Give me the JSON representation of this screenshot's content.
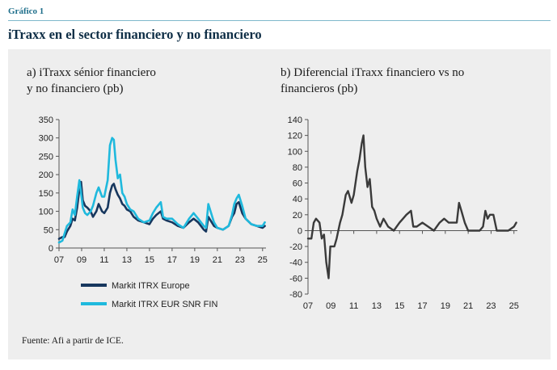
{
  "figure_label": "Gráfico 1",
  "title": "iTraxx en el sector financiero y no financiero",
  "source": "Fuente: Afi a partir de ICE.",
  "chart_data": [
    {
      "type": "line",
      "title": "a) iTraxx sénior financiero\n   y no financiero (pb)",
      "xlabel": "",
      "ylabel": "",
      "xlim": [
        2007.0,
        2025.3
      ],
      "ylim": [
        0,
        350
      ],
      "x_ticks": [
        2007,
        2009,
        2011,
        2013,
        2015,
        2017,
        2019,
        2021,
        2023,
        2025
      ],
      "x_tick_labels": [
        "07",
        "09",
        "11",
        "13",
        "15",
        "17",
        "19",
        "21",
        "23",
        "25"
      ],
      "y_ticks": [
        0,
        50,
        100,
        150,
        200,
        250,
        300,
        350
      ],
      "y_tick_labels": [
        "0",
        "50",
        "100",
        "150",
        "200",
        "250",
        "300",
        "350"
      ],
      "grid": false,
      "legend_position": "bottom-left",
      "series": [
        {
          "name": "Markit ITRX Europe",
          "color": "#17375e",
          "x": [
            2007.0,
            2007.3,
            2007.5,
            2007.7,
            2008.0,
            2008.2,
            2008.4,
            2008.6,
            2008.8,
            2008.95,
            2009.1,
            2009.3,
            2009.5,
            2009.8,
            2010.0,
            2010.3,
            2010.5,
            2010.8,
            2011.0,
            2011.3,
            2011.5,
            2011.7,
            2011.85,
            2012.0,
            2012.2,
            2012.4,
            2012.6,
            2012.8,
            2013.0,
            2013.3,
            2013.6,
            2014.0,
            2014.5,
            2015.0,
            2015.3,
            2015.6,
            2016.0,
            2016.2,
            2016.5,
            2017.0,
            2017.5,
            2018.0,
            2018.5,
            2018.9,
            2019.3,
            2019.8,
            2020.0,
            2020.2,
            2020.4,
            2020.7,
            2021.0,
            2021.5,
            2022.0,
            2022.3,
            2022.5,
            2022.7,
            2022.9,
            2023.2,
            2023.5,
            2024.0,
            2024.5,
            2025.0,
            2025.2
          ],
          "values": [
            25,
            30,
            30,
            45,
            60,
            80,
            75,
            110,
            160,
            180,
            130,
            115,
            110,
            100,
            85,
            100,
            120,
            100,
            95,
            110,
            150,
            170,
            175,
            160,
            145,
            135,
            120,
            115,
            105,
            100,
            85,
            75,
            70,
            65,
            80,
            90,
            100,
            80,
            75,
            70,
            60,
            55,
            70,
            80,
            70,
            50,
            45,
            85,
            75,
            60,
            55,
            50,
            60,
            85,
            95,
            120,
            125,
            95,
            80,
            65,
            60,
            55,
            60
          ]
        },
        {
          "name": "Markit ITRX EUR SNR FIN",
          "color": "#1fb9dd",
          "x": [
            2007.0,
            2007.3,
            2007.5,
            2007.7,
            2008.0,
            2008.2,
            2008.4,
            2008.6,
            2008.8,
            2008.95,
            2009.1,
            2009.3,
            2009.5,
            2009.8,
            2010.0,
            2010.3,
            2010.5,
            2010.8,
            2011.0,
            2011.3,
            2011.5,
            2011.7,
            2011.85,
            2012.0,
            2012.2,
            2012.4,
            2012.6,
            2012.8,
            2013.0,
            2013.3,
            2013.6,
            2014.0,
            2014.5,
            2015.0,
            2015.3,
            2015.6,
            2016.0,
            2016.2,
            2016.5,
            2017.0,
            2017.5,
            2018.0,
            2018.5,
            2018.9,
            2019.3,
            2019.8,
            2020.0,
            2020.2,
            2020.4,
            2020.7,
            2021.0,
            2021.5,
            2022.0,
            2022.3,
            2022.5,
            2022.7,
            2022.9,
            2023.2,
            2023.5,
            2024.0,
            2024.5,
            2025.0,
            2025.2
          ],
          "values": [
            15,
            20,
            40,
            60,
            70,
            105,
            90,
            140,
            185,
            150,
            110,
            95,
            90,
            100,
            115,
            150,
            165,
            140,
            140,
            185,
            280,
            300,
            295,
            240,
            190,
            200,
            150,
            140,
            120,
            105,
            100,
            80,
            70,
            75,
            95,
            110,
            125,
            85,
            80,
            80,
            65,
            55,
            80,
            95,
            80,
            60,
            55,
            120,
            100,
            70,
            55,
            50,
            60,
            90,
            120,
            135,
            145,
            115,
            80,
            65,
            60,
            60,
            70
          ]
        }
      ]
    },
    {
      "type": "line",
      "title": "b) Diferencial iTraxx financiero vs no\n    financieros (pb)",
      "xlabel": "",
      "ylabel": "",
      "xlim": [
        2007.0,
        2025.3
      ],
      "ylim": [
        -80,
        140
      ],
      "x_ticks": [
        2007,
        2009,
        2011,
        2013,
        2015,
        2017,
        2019,
        2021,
        2023,
        2025
      ],
      "x_tick_labels": [
        "07",
        "09",
        "11",
        "13",
        "15",
        "17",
        "19",
        "21",
        "23",
        "25"
      ],
      "y_ticks": [
        -80,
        -60,
        -40,
        -20,
        0,
        20,
        40,
        60,
        80,
        100,
        120,
        140
      ],
      "y_tick_labels": [
        "-80",
        "-60",
        "-40",
        "-20",
        "0",
        "20",
        "40",
        "60",
        "80",
        "100",
        "120",
        "140"
      ],
      "grid": false,
      "zero_line": true,
      "series": [
        {
          "color": "#3a3a3a",
          "x": [
            2007.0,
            2007.3,
            2007.5,
            2007.7,
            2008.0,
            2008.2,
            2008.4,
            2008.6,
            2008.8,
            2008.95,
            2009.1,
            2009.3,
            2009.5,
            2009.8,
            2010.0,
            2010.3,
            2010.5,
            2010.8,
            2011.0,
            2011.3,
            2011.5,
            2011.7,
            2011.85,
            2012.0,
            2012.2,
            2012.4,
            2012.6,
            2012.8,
            2013.0,
            2013.3,
            2013.6,
            2014.0,
            2014.5,
            2015.0,
            2015.3,
            2015.6,
            2016.0,
            2016.2,
            2016.5,
            2017.0,
            2017.5,
            2018.0,
            2018.5,
            2018.9,
            2019.3,
            2019.8,
            2020.0,
            2020.2,
            2020.4,
            2020.7,
            2021.0,
            2021.5,
            2022.0,
            2022.3,
            2022.5,
            2022.7,
            2022.9,
            2023.2,
            2023.5,
            2024.0,
            2024.5,
            2025.0,
            2025.2
          ],
          "values": [
            -10,
            -10,
            10,
            15,
            10,
            -10,
            -5,
            -40,
            -60,
            -20,
            -20,
            -20,
            -10,
            10,
            20,
            45,
            50,
            35,
            45,
            75,
            90,
            110,
            120,
            80,
            55,
            65,
            30,
            25,
            15,
            5,
            15,
            5,
            0,
            10,
            15,
            20,
            25,
            5,
            5,
            10,
            5,
            0,
            10,
            15,
            10,
            10,
            10,
            35,
            25,
            10,
            0,
            0,
            0,
            5,
            25,
            15,
            20,
            20,
            0,
            0,
            0,
            5,
            10
          ]
        }
      ]
    }
  ]
}
